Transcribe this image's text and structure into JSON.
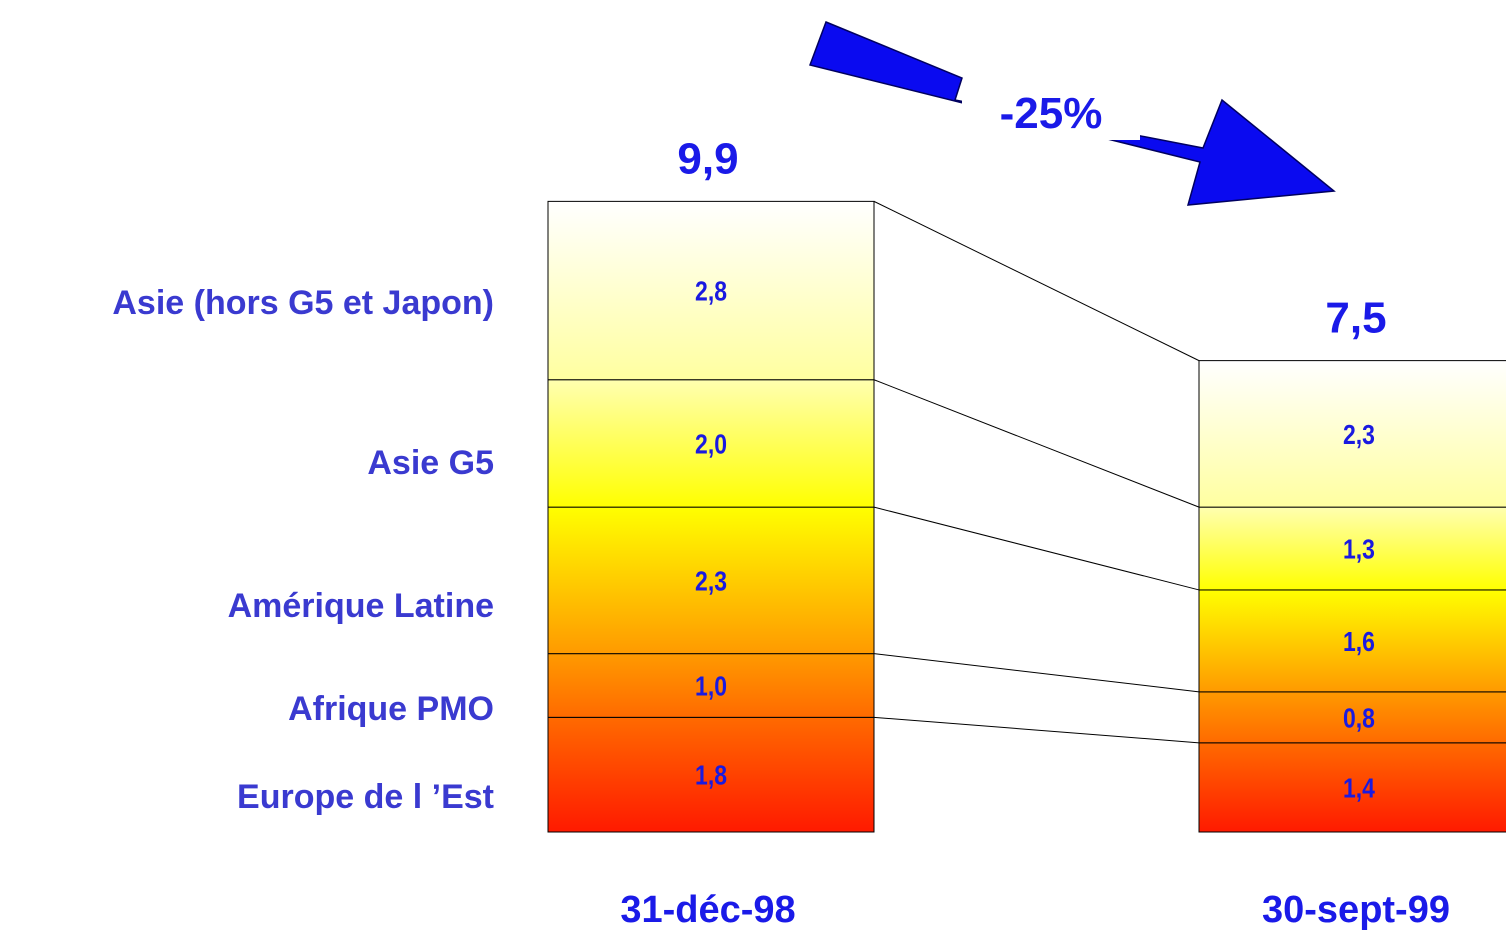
{
  "chart_data": {
    "type": "bar",
    "stacked": true,
    "categories": [
      "31-déc-98",
      "30-sept-99"
    ],
    "totals": [
      "9,9",
      "7,5"
    ],
    "change_label": "-25%",
    "series": [
      {
        "name": "Europe de l ’Est",
        "values": [
          1.8,
          1.4
        ],
        "labels": [
          "1,8",
          "1,4"
        ]
      },
      {
        "name": "Afrique PMO",
        "values": [
          1.0,
          0.8
        ],
        "labels": [
          "1,0",
          "0,8"
        ]
      },
      {
        "name": "Amérique Latine",
        "values": [
          2.3,
          1.6
        ],
        "labels": [
          "2,3",
          "1,6"
        ]
      },
      {
        "name": "Asie G5",
        "values": [
          2.0,
          1.3
        ],
        "labels": [
          "2,0",
          "1,3"
        ]
      },
      {
        "name": "Asie (hors G5 et Japon)",
        "values": [
          2.8,
          2.3
        ],
        "labels": [
          "2,8",
          "2,3"
        ]
      }
    ],
    "colors": {
      "text": "#1a1ae8",
      "arrow": "#0a0af0",
      "gradient_bottom": "#ff1a00",
      "gradient_mid": "#ffff00",
      "gradient_top": "#ffffff"
    },
    "legend": "left",
    "grid": false
  }
}
